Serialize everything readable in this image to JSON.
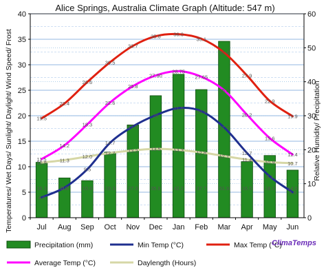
{
  "chart_data": {
    "type": "bar",
    "title": "Alice Springs, Australia Climate Graph (Altitude: 547 m)",
    "ylabel_left": "Temperatures/ Wet Days/ Sunlight/ Daylight/ Wind Speed/ Frost",
    "ylabel_right": "Relative Humidity/ Precipitation",
    "ylim_left": [
      0,
      40
    ],
    "ylim_right": [
      0,
      60
    ],
    "yticks_left": [
      "0",
      "5",
      "10",
      "15",
      "20",
      "25",
      "30",
      "35",
      "40"
    ],
    "yticks_right": [
      "0",
      "10",
      "20",
      "30",
      "40",
      "50",
      "60"
    ],
    "grid": true,
    "legend_position": "bottom",
    "brand": "ClimaTemps",
    "categories": [
      "Jul",
      "Aug",
      "Sep",
      "Oct",
      "Nov",
      "Dec",
      "Jan",
      "Feb",
      "Mar",
      "Apr",
      "May",
      "Jun"
    ],
    "series": [
      {
        "name": "Precipitation (mm)",
        "kind": "bar",
        "axis": "right",
        "color": "#228b22",
        "values": [
          16.3,
          11.7,
          10.9,
          19.3,
          27.3,
          35.9,
          42.2,
          37.7,
          51.9,
          16.5,
          18.3,
          14.0
        ],
        "labels": [
          "16.3",
          "11.7",
          "10.9",
          "19.3",
          "27.3",
          "35.9",
          "42.2",
          "37.7",
          "51.9",
          "16.5",
          "18.3",
          "14.0"
        ]
      },
      {
        "name": "Min Temp (°C)",
        "kind": "line",
        "axis": "left",
        "color": "#1f2f8f",
        "values": [
          4.0,
          5.9,
          9.5,
          14.7,
          17.9,
          20.1,
          21.5,
          20.9,
          17.7,
          12.7,
          8.1,
          5.0
        ],
        "labels": [
          "4.0",
          "5.9",
          "9.5",
          "14.7",
          "17.9",
          "20",
          "21.5",
          "20.9",
          "17.7",
          "12.7",
          "8.1",
          "5.0"
        ]
      },
      {
        "name": "Max Temp (°C)",
        "kind": "line",
        "axis": "left",
        "color": "#e02010",
        "values": [
          19.5,
          22.4,
          26.6,
          30.5,
          33.7,
          35.6,
          36.0,
          35.1,
          32.4,
          27.9,
          22.9,
          19.9
        ],
        "labels": [
          "19.5",
          "22.4",
          "26.6",
          "30.5",
          "33.7",
          "35.6",
          "36.0",
          "35.1",
          "32.4",
          "27.9",
          "22.9",
          "19.9"
        ]
      },
      {
        "name": "Average Temp (°C)",
        "kind": "line",
        "axis": "left",
        "color": "#ff00ff",
        "values": [
          11.5,
          14.2,
          18.3,
          22.6,
          25.8,
          27.9,
          28.75,
          27.65,
          25.0,
          20.2,
          15.6,
          12.4
        ],
        "labels": [
          "11.5",
          "14.2",
          "18.3",
          "22.6",
          "25.8",
          "27.90",
          "28.75",
          "27.65",
          "25.0",
          "20.2",
          "15.6",
          "12.4"
        ]
      },
      {
        "name": "Daylength (Hours)",
        "kind": "line",
        "axis": "left",
        "color": "#d6d7a6",
        "values": [
          10.8,
          11.3,
          12.0,
          12.7,
          13.2,
          13.5,
          13.3,
          12.8,
          12.1,
          11.4,
          10.9,
          10.7
        ],
        "labels": [
          "10.8",
          "11.3",
          "12.0",
          "12.7",
          "13.2",
          "13.5",
          "13.3",
          "12.8",
          "12.1",
          "11.4",
          "10.9",
          "10.7"
        ]
      }
    ]
  }
}
